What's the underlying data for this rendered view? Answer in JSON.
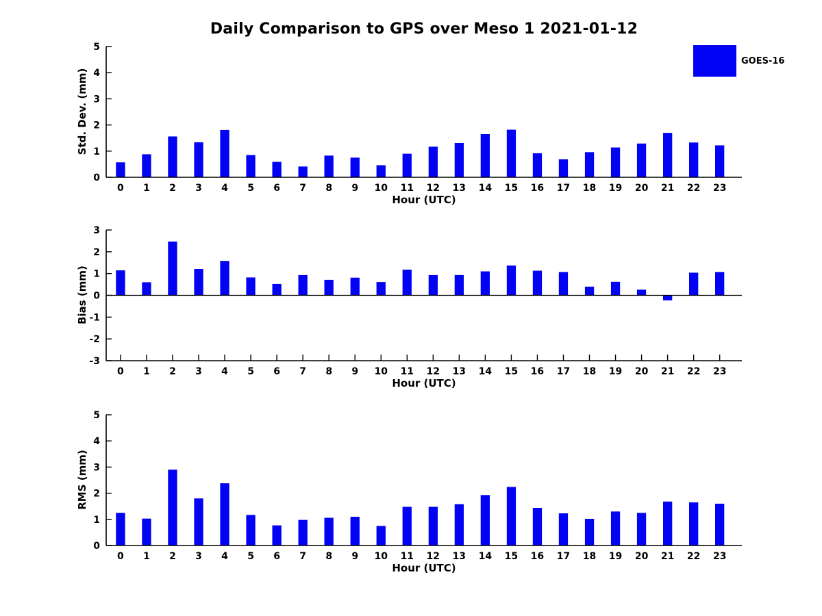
{
  "title": "Daily Comparison to GPS over Meso 1 2021-01-12",
  "legend": {
    "label": "GOES-16",
    "position": "top-right"
  },
  "colors": {
    "bar": "#0202f5",
    "axis": "#000000",
    "text": "#000000",
    "background": "#ffffff"
  },
  "chart_data": [
    {
      "type": "bar",
      "title": "",
      "xlabel": "Hour (UTC)",
      "ylabel": "Std. Dev. (mm)",
      "ylim": [
        0,
        5
      ],
      "yticks": [
        0,
        1,
        2,
        3,
        4,
        5
      ],
      "xlim": [
        -0.55,
        23.85
      ],
      "grid": false,
      "categories": [
        "0",
        "1",
        "2",
        "3",
        "4",
        "5",
        "6",
        "7",
        "8",
        "9",
        "10",
        "11",
        "12",
        "13",
        "14",
        "15",
        "16",
        "17",
        "18",
        "19",
        "20",
        "21",
        "22",
        "23"
      ],
      "series": [
        {
          "name": "GOES-16",
          "values": [
            0.57,
            0.88,
            1.56,
            1.34,
            1.81,
            0.85,
            0.59,
            0.41,
            0.83,
            0.75,
            0.46,
            0.9,
            1.17,
            1.31,
            1.65,
            1.82,
            0.92,
            0.69,
            0.96,
            1.14,
            1.29,
            1.7,
            1.33,
            1.22
          ]
        }
      ]
    },
    {
      "type": "bar",
      "title": "",
      "xlabel": "Hour (UTC)",
      "ylabel": "Bias (mm)",
      "ylim": [
        -3,
        3
      ],
      "yticks": [
        -3,
        -2,
        -1,
        0,
        1,
        2,
        3
      ],
      "xlim": [
        -0.55,
        23.85
      ],
      "grid": false,
      "categories": [
        "0",
        "1",
        "2",
        "3",
        "4",
        "5",
        "6",
        "7",
        "8",
        "9",
        "10",
        "11",
        "12",
        "13",
        "14",
        "15",
        "16",
        "17",
        "18",
        "19",
        "20",
        "21",
        "22",
        "23"
      ],
      "series": [
        {
          "name": "GOES-16",
          "values": [
            1.15,
            0.6,
            2.47,
            1.21,
            1.58,
            0.82,
            0.52,
            0.93,
            0.71,
            0.81,
            0.61,
            1.18,
            0.93,
            0.93,
            1.1,
            1.37,
            1.13,
            1.07,
            0.4,
            0.62,
            0.26,
            -0.23,
            1.04,
            1.07
          ]
        }
      ]
    },
    {
      "type": "bar",
      "title": "",
      "xlabel": "Hour (UTC)",
      "ylabel": "RMS (mm)",
      "ylim": [
        0,
        5
      ],
      "yticks": [
        0,
        1,
        2,
        3,
        4,
        5
      ],
      "xlim": [
        -0.55,
        23.85
      ],
      "grid": false,
      "categories": [
        "0",
        "1",
        "2",
        "3",
        "4",
        "5",
        "6",
        "7",
        "8",
        "9",
        "10",
        "11",
        "12",
        "13",
        "14",
        "15",
        "16",
        "17",
        "18",
        "19",
        "20",
        "21",
        "22",
        "23"
      ],
      "series": [
        {
          "name": "GOES-16",
          "values": [
            1.25,
            1.03,
            2.9,
            1.8,
            2.38,
            1.17,
            0.77,
            0.98,
            1.06,
            1.1,
            0.75,
            1.48,
            1.48,
            1.58,
            1.93,
            2.24,
            1.44,
            1.23,
            1.02,
            1.3,
            1.25,
            1.68,
            1.65,
            1.6
          ]
        }
      ]
    }
  ]
}
